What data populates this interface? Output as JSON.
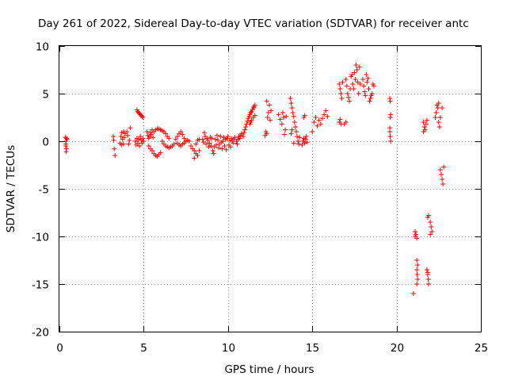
{
  "chart_data": {
    "type": "scatter",
    "title": "Day 261 of 2022, Sidereal Day-to-day VTEC variation (SDTVAR) for receiver antc",
    "xlabel": "GPS time / hours",
    "ylabel": "SDTVAR / TECUs",
    "xlim": [
      0,
      25
    ],
    "ylim": [
      -20,
      10
    ],
    "xticks": [
      0,
      5,
      10,
      15,
      20,
      25
    ],
    "yticks": [
      -20,
      -15,
      -10,
      -5,
      0,
      5,
      10
    ],
    "xtick_labels": [
      "0",
      "5",
      "10",
      "15",
      "20",
      "25"
    ],
    "ytick_labels": [
      "-20",
      "-15",
      "-10",
      "-5",
      "0",
      "5",
      "10"
    ],
    "grid": true,
    "marker": "+",
    "series": [
      {
        "name": "SDTVAR",
        "color": "#ff0000",
        "points": [
          [
            0.35,
            0.4
          ],
          [
            0.38,
            -0.3
          ],
          [
            0.4,
            0.0
          ],
          [
            0.42,
            -0.8
          ],
          [
            0.45,
            0.2
          ],
          [
            0.4,
            -1.1
          ],
          [
            0.38,
            -0.5
          ],
          [
            0.43,
            0.3
          ],
          [
            3.2,
            0.5
          ],
          [
            3.25,
            -0.8
          ],
          [
            3.3,
            -1.5
          ],
          [
            3.22,
            0.1
          ],
          [
            3.6,
            -0.2
          ],
          [
            3.65,
            0.5
          ],
          [
            3.7,
            0.9
          ],
          [
            3.75,
            0.2
          ],
          [
            3.8,
            -0.3
          ],
          [
            3.85,
            0.4
          ],
          [
            3.9,
            0.8
          ],
          [
            3.68,
            -0.4
          ],
          [
            3.82,
            1.0
          ],
          [
            4.0,
            1.0
          ],
          [
            4.05,
            0.6
          ],
          [
            4.1,
            -0.3
          ],
          [
            4.15,
            0.1
          ],
          [
            4.2,
            1.4
          ],
          [
            4.5,
            0.0
          ],
          [
            4.55,
            -0.4
          ],
          [
            4.6,
            0.3
          ],
          [
            4.65,
            -0.2
          ],
          [
            4.7,
            0.2
          ],
          [
            4.75,
            -0.5
          ],
          [
            4.8,
            0.5
          ],
          [
            4.85,
            0.1
          ],
          [
            4.9,
            -0.2
          ],
          [
            4.95,
            0.3
          ],
          [
            5.0,
            0.0
          ],
          [
            4.6,
            3.3
          ],
          [
            4.65,
            3.1
          ],
          [
            4.7,
            3.0
          ],
          [
            4.75,
            2.9
          ],
          [
            4.8,
            2.8
          ],
          [
            4.85,
            2.7
          ],
          [
            4.9,
            2.6
          ],
          [
            4.95,
            2.5
          ],
          [
            5.2,
            1.0
          ],
          [
            5.25,
            0.6
          ],
          [
            5.3,
            0.3
          ],
          [
            5.35,
            0.5
          ],
          [
            5.4,
            0.9
          ],
          [
            5.45,
            0.7
          ],
          [
            5.5,
            1.2
          ],
          [
            5.55,
            0.4
          ],
          [
            5.3,
            -0.5
          ],
          [
            5.4,
            -0.8
          ],
          [
            5.5,
            -1.0
          ],
          [
            5.6,
            -1.3
          ],
          [
            5.7,
            -1.5
          ],
          [
            5.8,
            -1.6
          ],
          [
            5.9,
            -1.4
          ],
          [
            6.0,
            -1.2
          ],
          [
            5.6,
            1.0
          ],
          [
            5.7,
            1.2
          ],
          [
            5.8,
            1.3
          ],
          [
            5.9,
            1.3
          ],
          [
            6.0,
            1.2
          ],
          [
            6.1,
            1.1
          ],
          [
            6.2,
            1.0
          ],
          [
            6.3,
            0.8
          ],
          [
            6.4,
            0.5
          ],
          [
            6.5,
            0.3
          ],
          [
            6.1,
            0.0
          ],
          [
            6.2,
            -0.3
          ],
          [
            6.3,
            -0.5
          ],
          [
            6.4,
            -0.6
          ],
          [
            6.5,
            -0.7
          ],
          [
            6.6,
            -0.6
          ],
          [
            6.7,
            -0.5
          ],
          [
            6.8,
            -0.3
          ],
          [
            6.9,
            0.2
          ],
          [
            7.0,
            0.5
          ],
          [
            7.1,
            0.8
          ],
          [
            7.2,
            1.0
          ],
          [
            7.3,
            0.7
          ],
          [
            7.4,
            0.3
          ],
          [
            7.0,
            -0.2
          ],
          [
            7.1,
            -0.4
          ],
          [
            7.2,
            -0.5
          ],
          [
            7.3,
            -0.3
          ],
          [
            7.4,
            -0.2
          ],
          [
            7.5,
            0.0
          ],
          [
            7.6,
            0.1
          ],
          [
            7.7,
            0.0
          ],
          [
            7.8,
            -0.5
          ],
          [
            7.9,
            -0.8
          ],
          [
            8.0,
            -1.0
          ],
          [
            8.1,
            -1.3
          ],
          [
            8.2,
            -1.5
          ],
          [
            8.0,
            -1.8
          ],
          [
            8.1,
            -0.3
          ],
          [
            8.2,
            0.1
          ],
          [
            8.3,
            0.2
          ],
          [
            8.3,
            -1.0
          ],
          [
            8.5,
            0.2
          ],
          [
            8.55,
            -0.1
          ],
          [
            8.6,
            0.9
          ],
          [
            8.65,
            0.5
          ],
          [
            8.7,
            -0.3
          ],
          [
            8.75,
            0.3
          ],
          [
            8.8,
            0.1
          ],
          [
            8.85,
            -0.6
          ],
          [
            8.9,
            -0.2
          ],
          [
            8.95,
            0.4
          ],
          [
            9.0,
            -0.5
          ],
          [
            9.05,
            0.3
          ],
          [
            9.1,
            -1.0
          ],
          [
            9.15,
            -1.3
          ],
          [
            9.2,
            -0.6
          ],
          [
            9.25,
            0.2
          ],
          [
            9.3,
            -0.4
          ],
          [
            9.35,
            0.6
          ],
          [
            9.4,
            0.1
          ],
          [
            9.45,
            -0.7
          ],
          [
            9.5,
            -0.3
          ],
          [
            9.55,
            0.5
          ],
          [
            9.6,
            -0.1
          ],
          [
            9.65,
            -0.8
          ],
          [
            9.7,
            0.0
          ],
          [
            9.75,
            0.4
          ],
          [
            9.8,
            -0.5
          ],
          [
            9.85,
            0.2
          ],
          [
            9.9,
            -0.9
          ],
          [
            9.95,
            0.3
          ],
          [
            10.0,
            0.5
          ],
          [
            10.05,
            -0.4
          ],
          [
            10.1,
            0.1
          ],
          [
            10.15,
            -0.6
          ],
          [
            10.2,
            0.3
          ],
          [
            10.25,
            0.0
          ],
          [
            10.3,
            -0.2
          ],
          [
            10.35,
            0.2
          ],
          [
            10.4,
            0.4
          ],
          [
            10.5,
            0.0
          ],
          [
            10.55,
            -0.3
          ],
          [
            10.6,
            0.2
          ],
          [
            10.65,
            0.5
          ],
          [
            10.7,
            0.3
          ],
          [
            10.75,
            0.6
          ],
          [
            10.8,
            0.8
          ],
          [
            10.9,
            0.5
          ],
          [
            10.95,
            0.9
          ],
          [
            11.0,
            1.2
          ],
          [
            11.05,
            1.5
          ],
          [
            11.1,
            1.8
          ],
          [
            11.15,
            2.1
          ],
          [
            11.2,
            2.4
          ],
          [
            11.25,
            2.6
          ],
          [
            11.3,
            2.8
          ],
          [
            11.35,
            3.0
          ],
          [
            11.4,
            3.1
          ],
          [
            11.45,
            3.3
          ],
          [
            11.5,
            3.5
          ],
          [
            11.55,
            3.6
          ],
          [
            11.6,
            3.8
          ],
          [
            11.3,
            1.8
          ],
          [
            11.35,
            2.0
          ],
          [
            11.4,
            2.2
          ],
          [
            11.5,
            2.5
          ],
          [
            11.6,
            2.7
          ],
          [
            12.2,
            0.6
          ],
          [
            12.25,
            1.0
          ],
          [
            12.3,
            0.8
          ],
          [
            12.35,
            2.5
          ],
          [
            12.4,
            3.0
          ],
          [
            12.45,
            3.8
          ],
          [
            12.5,
            2.2
          ],
          [
            12.55,
            3.2
          ],
          [
            12.3,
            4.2
          ],
          [
            13.0,
            2.8
          ],
          [
            13.1,
            2.3
          ],
          [
            13.2,
            1.8
          ],
          [
            13.25,
            3.0
          ],
          [
            13.3,
            2.5
          ],
          [
            13.35,
            0.7
          ],
          [
            13.4,
            1.2
          ],
          [
            13.45,
            2.6
          ],
          [
            13.7,
            4.5
          ],
          [
            13.75,
            4.0
          ],
          [
            13.8,
            3.5
          ],
          [
            13.85,
            3.0
          ],
          [
            13.9,
            2.6
          ],
          [
            13.95,
            2.0
          ],
          [
            14.0,
            1.5
          ],
          [
            14.05,
            1.0
          ],
          [
            14.1,
            0.5
          ],
          [
            14.15,
            0.0
          ],
          [
            14.2,
            -0.3
          ],
          [
            14.25,
            0.4
          ],
          [
            13.75,
            0.8
          ],
          [
            13.8,
            1.2
          ],
          [
            13.9,
            -0.2
          ],
          [
            14.4,
            -0.4
          ],
          [
            14.45,
            0.0
          ],
          [
            14.5,
            0.3
          ],
          [
            14.55,
            -0.2
          ],
          [
            14.6,
            0.2
          ],
          [
            14.65,
            0.5
          ],
          [
            14.7,
            -0.1
          ],
          [
            14.5,
            2.5
          ],
          [
            14.55,
            2.7
          ],
          [
            15.0,
            1.0
          ],
          [
            15.1,
            2.0
          ],
          [
            15.2,
            2.5
          ],
          [
            15.3,
            1.6
          ],
          [
            15.4,
            2.2
          ],
          [
            15.5,
            1.8
          ],
          [
            15.6,
            2.4
          ],
          [
            15.7,
            2.8
          ],
          [
            15.8,
            3.2
          ],
          [
            15.9,
            2.6
          ],
          [
            16.6,
            2.0
          ],
          [
            16.65,
            2.3
          ],
          [
            16.7,
            1.8
          ],
          [
            16.6,
            6.0
          ],
          [
            16.65,
            5.5
          ],
          [
            16.7,
            5.0
          ],
          [
            16.75,
            4.5
          ],
          [
            16.8,
            6.2
          ],
          [
            17.0,
            6.5
          ],
          [
            17.05,
            5.8
          ],
          [
            17.1,
            5.0
          ],
          [
            17.15,
            4.6
          ],
          [
            17.2,
            4.2
          ],
          [
            17.25,
            5.5
          ],
          [
            17.3,
            6.8
          ],
          [
            17.35,
            7.0
          ],
          [
            17.4,
            6.0
          ],
          [
            17.45,
            5.5
          ],
          [
            17.5,
            7.2
          ],
          [
            17.55,
            6.5
          ],
          [
            17.6,
            8.0
          ],
          [
            17.65,
            7.5
          ],
          [
            17.7,
            6.2
          ],
          [
            17.75,
            5.0
          ],
          [
            17.8,
            7.8
          ],
          [
            17.85,
            6.0
          ],
          [
            16.9,
            1.8
          ],
          [
            17.0,
            2.0
          ],
          [
            18.0,
            6.5
          ],
          [
            18.05,
            5.8
          ],
          [
            18.1,
            5.2
          ],
          [
            18.15,
            4.8
          ],
          [
            18.2,
            7.0
          ],
          [
            18.25,
            6.2
          ],
          [
            18.3,
            6.6
          ],
          [
            18.35,
            5.5
          ],
          [
            18.4,
            4.2
          ],
          [
            18.45,
            4.5
          ],
          [
            18.5,
            4.8
          ],
          [
            18.55,
            5.0
          ],
          [
            18.6,
            6.0
          ],
          [
            18.65,
            5.8
          ],
          [
            19.6,
            4.5
          ],
          [
            19.62,
            4.2
          ],
          [
            19.65,
            2.8
          ],
          [
            19.6,
            1.0
          ],
          [
            19.62,
            0.5
          ],
          [
            19.65,
            0.0
          ],
          [
            19.6,
            1.4
          ],
          [
            19.63,
            2.5
          ],
          [
            21.0,
            -16.0
          ],
          [
            21.1,
            -9.5
          ],
          [
            21.15,
            -9.8
          ],
          [
            21.2,
            -10.2
          ],
          [
            21.1,
            -10.0
          ],
          [
            21.2,
            -12.5
          ],
          [
            21.25,
            -13.0
          ],
          [
            21.2,
            -13.5
          ],
          [
            21.22,
            -14.0
          ],
          [
            21.25,
            -14.5
          ],
          [
            21.2,
            -15.0
          ],
          [
            21.6,
            2.0
          ],
          [
            21.65,
            1.5
          ],
          [
            21.7,
            1.2
          ],
          [
            21.75,
            1.8
          ],
          [
            21.8,
            2.2
          ],
          [
            21.6,
            1.0
          ],
          [
            21.85,
            -8.0
          ],
          [
            21.9,
            -7.8
          ],
          [
            21.8,
            -13.5
          ],
          [
            21.85,
            -14.0
          ],
          [
            21.88,
            -14.5
          ],
          [
            21.9,
            -15.0
          ],
          [
            21.85,
            -13.8
          ],
          [
            22.0,
            -8.5
          ],
          [
            22.05,
            -9.0
          ],
          [
            22.1,
            -9.5
          ],
          [
            22.0,
            -9.8
          ],
          [
            22.3,
            2.5
          ],
          [
            22.35,
            3.0
          ],
          [
            22.4,
            3.8
          ],
          [
            22.45,
            3.5
          ],
          [
            22.5,
            4.0
          ],
          [
            22.5,
            2.0
          ],
          [
            22.55,
            1.5
          ],
          [
            22.6,
            2.5
          ],
          [
            22.7,
            3.5
          ],
          [
            22.6,
            -3.0
          ],
          [
            22.65,
            -3.5
          ],
          [
            22.7,
            -4.0
          ],
          [
            22.75,
            -4.5
          ],
          [
            22.8,
            -2.7
          ]
        ]
      }
    ]
  }
}
